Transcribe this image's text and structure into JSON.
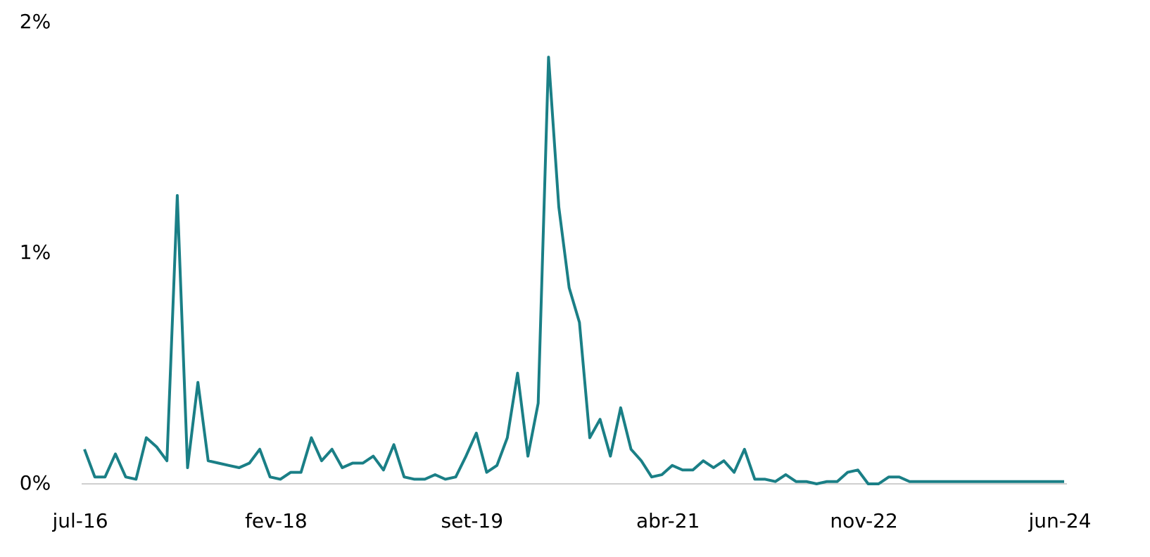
{
  "chart_data": {
    "type": "line",
    "categories": [
      "jul-16",
      null,
      null,
      null,
      null,
      null,
      null,
      null,
      null,
      null,
      null,
      null,
      null,
      null,
      null,
      null,
      null,
      null,
      null,
      "fev-18",
      null,
      null,
      null,
      null,
      null,
      null,
      null,
      null,
      null,
      null,
      null,
      null,
      null,
      null,
      null,
      null,
      null,
      null,
      "set-19",
      null,
      null,
      null,
      null,
      null,
      null,
      null,
      null,
      null,
      null,
      null,
      null,
      null,
      null,
      null,
      null,
      null,
      null,
      "abr-21",
      null,
      null,
      null,
      null,
      null,
      null,
      null,
      null,
      null,
      null,
      null,
      null,
      null,
      null,
      null,
      null,
      null,
      null,
      "nov-22",
      null,
      null,
      null,
      null,
      null,
      null,
      null,
      null,
      null,
      null,
      null,
      null,
      null,
      null,
      null,
      null,
      null,
      null,
      "jun-24"
    ],
    "series": [
      {
        "name": null,
        "color": "#1a7f86",
        "values": [
          0.15,
          0.03,
          0.03,
          0.13,
          0.03,
          0.02,
          0.2,
          0.16,
          0.1,
          1.25,
          0.07,
          0.44,
          0.1,
          0.09,
          0.08,
          0.07,
          0.09,
          0.15,
          0.03,
          0.02,
          0.05,
          0.05,
          0.2,
          0.1,
          0.15,
          0.07,
          0.09,
          0.09,
          0.12,
          0.06,
          0.17,
          0.03,
          0.02,
          0.02,
          0.04,
          0.02,
          0.03,
          0.12,
          0.22,
          0.05,
          0.08,
          0.2,
          0.48,
          0.12,
          0.35,
          1.85,
          1.2,
          0.85,
          0.7,
          0.2,
          0.28,
          0.12,
          0.33,
          0.15,
          0.1,
          0.03,
          0.04,
          0.08,
          0.06,
          0.06,
          0.1,
          0.07,
          0.1,
          0.05,
          0.15,
          0.02,
          0.02,
          0.01,
          0.04,
          0.01,
          0.01,
          0,
          0.01,
          0.01,
          0.05,
          0.06,
          0,
          0,
          0.03,
          0.03,
          0.01,
          0.01,
          0.01,
          0.01,
          0.01,
          0.01,
          0.01,
          0.01,
          0.01,
          0.01,
          0.01,
          0.01,
          0.01,
          0.01,
          0.01,
          0.01
        ]
      }
    ],
    "ylim": [
      0,
      2
    ],
    "yticks": [
      {
        "value": 0,
        "label": "0%"
      },
      {
        "value": 1,
        "label": "1%"
      },
      {
        "value": 2,
        "label": "2%"
      }
    ],
    "grid": false
  }
}
